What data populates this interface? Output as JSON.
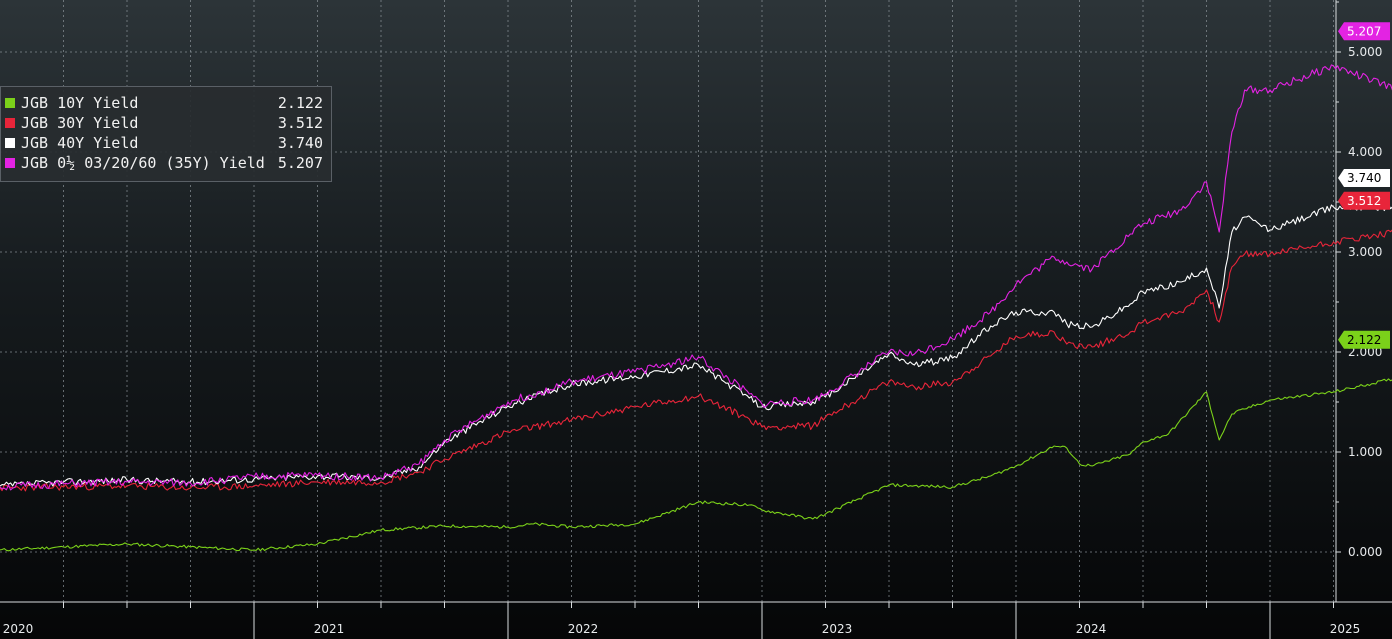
{
  "chart_data": {
    "type": "line",
    "ylim": [
      -0.5,
      5.5
    ],
    "y_ticks": [
      "0.000",
      "1.000",
      "2.000",
      "3.000",
      "4.000",
      "5.000"
    ],
    "x_labels": [
      "2020",
      "2021",
      "2022",
      "2023",
      "2024",
      "2025"
    ],
    "grid": true,
    "legend_position": "top-left",
    "series": [
      {
        "name": "JGB 10Y Yield",
        "last_label": "2.122",
        "color": "#7bd11a",
        "x": [
          2020.0,
          2020.25,
          2020.5,
          2020.75,
          2021.0,
          2021.25,
          2021.5,
          2021.75,
          2022.0,
          2022.1,
          2022.25,
          2022.5,
          2022.75,
          2022.95,
          2023.0,
          2023.2,
          2023.25,
          2023.5,
          2023.75,
          2023.9,
          2024.0,
          2024.15,
          2024.2,
          2024.25,
          2024.3,
          2024.45,
          2024.5,
          2024.6,
          2024.75,
          2024.8,
          2024.85,
          2024.9,
          2025.0,
          2025.25,
          2025.5,
          2025.75,
          2025.87
        ],
        "values": [
          0.02,
          0.05,
          0.08,
          0.05,
          0.02,
          0.08,
          0.22,
          0.26,
          0.25,
          0.28,
          0.25,
          0.28,
          0.5,
          0.47,
          0.42,
          0.33,
          0.38,
          0.67,
          0.65,
          0.76,
          0.86,
          1.06,
          1.04,
          0.88,
          0.86,
          0.98,
          1.1,
          1.18,
          1.6,
          1.12,
          1.38,
          1.43,
          1.52,
          1.6,
          1.74,
          1.98,
          2.122
        ]
      },
      {
        "name": "JGB 30Y Yield",
        "last_label": "3.512",
        "color": "#e8253a",
        "x": [
          2020.0,
          2020.25,
          2020.5,
          2020.75,
          2021.0,
          2021.25,
          2021.5,
          2021.65,
          2021.75,
          2022.0,
          2022.25,
          2022.5,
          2022.75,
          2022.95,
          2023.0,
          2023.2,
          2023.25,
          2023.5,
          2023.6,
          2023.75,
          2023.9,
          2024.0,
          2024.15,
          2024.2,
          2024.3,
          2024.45,
          2024.5,
          2024.65,
          2024.75,
          2024.8,
          2024.85,
          2024.9,
          2025.0,
          2025.25,
          2025.5,
          2025.75,
          2025.87
        ],
        "values": [
          0.64,
          0.65,
          0.66,
          0.64,
          0.66,
          0.7,
          0.7,
          0.8,
          0.93,
          1.2,
          1.32,
          1.45,
          1.56,
          1.33,
          1.25,
          1.26,
          1.35,
          1.7,
          1.65,
          1.7,
          1.96,
          2.16,
          2.2,
          2.08,
          2.05,
          2.2,
          2.3,
          2.4,
          2.62,
          2.3,
          2.85,
          2.98,
          2.98,
          3.1,
          3.2,
          3.27,
          3.512
        ]
      },
      {
        "name": "JGB 40Y Yield",
        "last_label": "3.740",
        "color": "#ffffff",
        "x": [
          2020.0,
          2020.25,
          2020.5,
          2020.75,
          2021.0,
          2021.25,
          2021.5,
          2021.65,
          2021.75,
          2022.0,
          2022.25,
          2022.5,
          2022.75,
          2022.95,
          2023.0,
          2023.2,
          2023.25,
          2023.5,
          2023.6,
          2023.75,
          2023.9,
          2024.0,
          2024.15,
          2024.2,
          2024.3,
          2024.45,
          2024.5,
          2024.65,
          2024.75,
          2024.8,
          2024.85,
          2024.9,
          2025.0,
          2025.25,
          2025.5,
          2025.75,
          2025.87
        ],
        "values": [
          0.66,
          0.7,
          0.72,
          0.7,
          0.73,
          0.76,
          0.74,
          0.85,
          1.1,
          1.46,
          1.68,
          1.76,
          1.87,
          1.54,
          1.45,
          1.5,
          1.55,
          1.98,
          1.87,
          1.94,
          2.26,
          2.4,
          2.4,
          2.28,
          2.25,
          2.48,
          2.6,
          2.7,
          2.84,
          2.44,
          3.2,
          3.35,
          3.22,
          3.45,
          3.45,
          3.5,
          3.74
        ]
      },
      {
        "name": "JGB 0½ 03/20/60 (35Y) Yield",
        "last_label": "5.207",
        "color": "#e323e3",
        "x": [
          2020.0,
          2020.25,
          2020.5,
          2020.75,
          2021.0,
          2021.25,
          2021.5,
          2021.65,
          2021.75,
          2022.0,
          2022.25,
          2022.5,
          2022.75,
          2022.95,
          2023.0,
          2023.2,
          2023.25,
          2023.5,
          2023.6,
          2023.75,
          2023.9,
          2024.0,
          2024.15,
          2024.2,
          2024.3,
          2024.45,
          2024.5,
          2024.65,
          2024.75,
          2024.8,
          2024.85,
          2024.9,
          2025.0,
          2025.25,
          2025.5,
          2025.75,
          2025.87
        ],
        "values": [
          0.65,
          0.68,
          0.7,
          0.69,
          0.75,
          0.77,
          0.74,
          0.88,
          1.12,
          1.5,
          1.7,
          1.8,
          1.95,
          1.58,
          1.48,
          1.52,
          1.58,
          2.0,
          1.98,
          2.13,
          2.4,
          2.68,
          2.95,
          2.9,
          2.83,
          3.18,
          3.28,
          3.42,
          3.7,
          3.2,
          4.2,
          4.62,
          4.62,
          4.86,
          4.62,
          5.0,
          5.207
        ]
      }
    ]
  }
}
